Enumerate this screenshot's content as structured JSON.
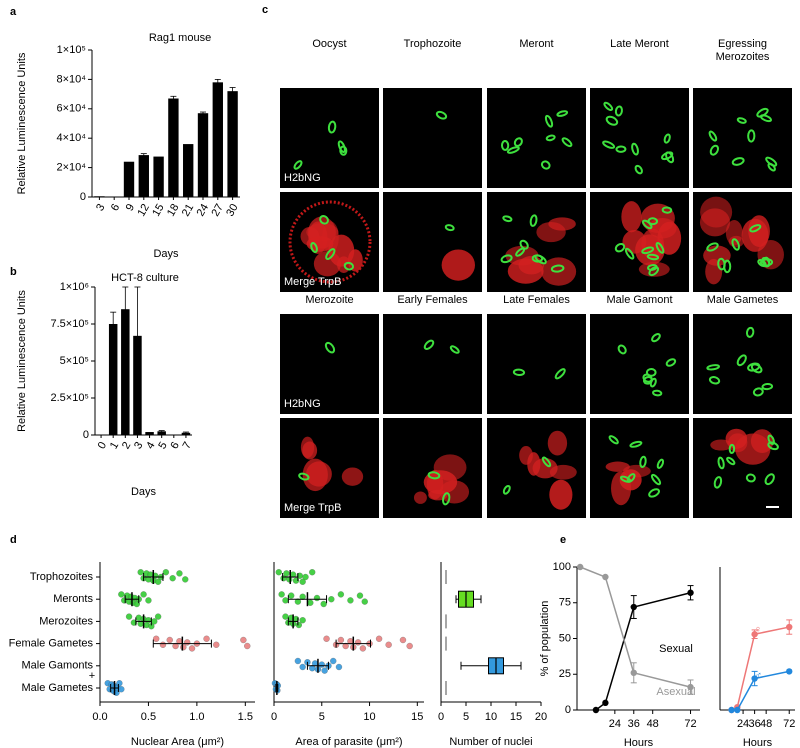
{
  "panel_labels": [
    "a",
    "b",
    "c",
    "d",
    "e"
  ],
  "annotation": "+",
  "microscopy": {
    "groups": [
      {
        "columns": [
          "Oocyst",
          "Trophozoite",
          "Meront",
          "Late Meront",
          "Egressing Merozoites"
        ],
        "rows": [
          "H2bNG",
          "Merge TrpB"
        ]
      },
      {
        "columns": [
          "Merozoite",
          "Early Females",
          "Late Females",
          "Male Gamont",
          "Male Gametes"
        ],
        "rows": [
          "H2bNG",
          "Merge TrpB"
        ]
      }
    ]
  },
  "chart_data": [
    {
      "type": "bar",
      "title": "Rag1 mouse",
      "y_label": "Relative Luminescence Units",
      "x_label": "Days",
      "categories": [
        "3",
        "6",
        "9",
        "12",
        "15",
        "18",
        "21",
        "24",
        "27",
        "30"
      ],
      "values": [
        500,
        200,
        24000,
        28500,
        27500,
        67000,
        36000,
        57000,
        78000,
        72000
      ],
      "errors": [
        null,
        null,
        null,
        1000,
        null,
        1500,
        null,
        800,
        2000,
        2500
      ],
      "color": "#000000",
      "ylim": [
        0,
        100000
      ],
      "yticks": [
        0,
        {
          "value": 20000,
          "label": "2×10⁴"
        },
        {
          "value": 40000,
          "label": "4×10⁴"
        },
        {
          "value": 60000,
          "label": "6×10⁴"
        },
        {
          "value": 80000,
          "label": "8×10⁴"
        },
        {
          "value": 100000,
          "label": "1×10⁵"
        }
      ]
    },
    {
      "type": "bar",
      "title": "HCT-8 culture",
      "y_label": "Relative Luminescence Units",
      "x_label": "Days",
      "categories": [
        "0",
        "1",
        "2",
        "3",
        "4",
        "5",
        "6",
        "7"
      ],
      "values": [
        0,
        750000,
        850000,
        670000,
        20000,
        25000,
        0,
        15000
      ],
      "errors": [
        null,
        80000,
        150000,
        330000,
        null,
        5000,
        null,
        5000
      ],
      "color": "#000000",
      "ylim": [
        0,
        1000000
      ],
      "yticks": [
        0,
        {
          "value": 250000,
          "label": "2.5×10⁵"
        },
        {
          "value": 500000,
          "label": "5×10⁵"
        },
        {
          "value": 750000,
          "label": "7.5×10⁵"
        },
        {
          "value": 1000000,
          "label": "1×10⁶"
        }
      ]
    },
    {
      "type": "strip",
      "x_label": "Nuclear Area (μm²)",
      "categories": [
        "Trophozoites",
        "Meronts",
        "Merozoites",
        "Female Gametes",
        "Male Gamonts",
        "Male Gametes"
      ],
      "colors": [
        "#33cc33",
        "#33cc33",
        "#33cc33",
        "#e88080",
        "#3399dd",
        "#3399dd"
      ],
      "points": [
        [
          0.42,
          0.45,
          0.48,
          0.5,
          0.52,
          0.55,
          0.57,
          0.6,
          0.63,
          0.68,
          0.75,
          0.82,
          0.88
        ],
        [
          0.22,
          0.25,
          0.28,
          0.3,
          0.32,
          0.34,
          0.36,
          0.38,
          0.4,
          0.45,
          0.5
        ],
        [
          0.3,
          0.35,
          0.4,
          0.42,
          0.45,
          0.48,
          0.5,
          0.53,
          0.56,
          0.6
        ],
        [
          0.58,
          0.65,
          0.72,
          0.78,
          0.82,
          0.86,
          0.9,
          0.95,
          1.0,
          1.1,
          1.2,
          1.48,
          1.52
        ],
        [],
        [
          0.08,
          0.1,
          0.12,
          0.13,
          0.14,
          0.15,
          0.16,
          0.17,
          0.18,
          0.2,
          0.22
        ]
      ],
      "means": [
        0.55,
        0.33,
        0.45,
        0.85,
        null,
        0.15
      ],
      "sds": [
        0.1,
        0.07,
        0.08,
        0.3,
        null,
        0.04
      ],
      "xlim": [
        0,
        1.6
      ],
      "xticks": [
        {
          "value": 0,
          "label": "0.0"
        },
        0.5,
        {
          "value": 1,
          "label": "1.0"
        },
        1.5
      ]
    },
    {
      "type": "strip",
      "x_label": "Area of parasite (μm²)",
      "colors": [
        "#33cc33",
        "#33cc33",
        "#33cc33",
        "#e88080",
        "#3399dd",
        "#3399dd"
      ],
      "points": [
        [
          0.5,
          1,
          1.3,
          1.6,
          2,
          2.3,
          2.7,
          3,
          3.3,
          4
        ],
        [
          0.8,
          1.2,
          1.8,
          2.5,
          3,
          3.8,
          4.5,
          5.2,
          6,
          7,
          8,
          9,
          9.5
        ],
        [
          1.2,
          1.5,
          1.8,
          2,
          2.3,
          2.6,
          3
        ],
        [
          5.5,
          6.5,
          7,
          7.5,
          8,
          8.3,
          8.8,
          9.3,
          10,
          11,
          12,
          13.5,
          14.2
        ],
        [
          2.5,
          3,
          3.5,
          4,
          4.3,
          4.6,
          5,
          5.3,
          5.7,
          6.2,
          6.8
        ],
        [
          0.1,
          0.2,
          0.3,
          0.35,
          0.4
        ]
      ],
      "means": [
        1.7,
        3.5,
        2,
        8.3,
        4.6,
        0.3
      ],
      "sds": [
        0.8,
        2,
        0.5,
        1.8,
        1.1,
        0.1
      ],
      "xlim": [
        0,
        15.7
      ],
      "xticks": [
        0,
        5,
        10,
        15
      ]
    },
    {
      "type": "box",
      "x_label": "Number of nuclei",
      "colors": [
        "#888888",
        "#66dd22",
        "#888888",
        "#888888",
        "#3399dd",
        "#888888"
      ],
      "boxes": [
        {
          "min": 1,
          "q1": 1,
          "median": 1,
          "q3": 1,
          "max": 1
        },
        {
          "min": 3,
          "q1": 3.5,
          "median": 5,
          "q3": 6.5,
          "max": 8
        },
        {
          "min": 1,
          "q1": 1,
          "median": 1,
          "q3": 1,
          "max": 1
        },
        {
          "min": 1,
          "q1": 1,
          "median": 1,
          "q3": 1,
          "max": 1
        },
        {
          "min": 4,
          "q1": 9.5,
          "median": 11,
          "q3": 12.5,
          "max": 16
        },
        {
          "min": 1,
          "q1": 1,
          "median": 1,
          "q3": 1,
          "max": 1
        }
      ],
      "xlim": [
        0,
        20
      ],
      "xticks": [
        0,
        5,
        10,
        15,
        20
      ]
    },
    {
      "type": "line",
      "y_label": "% of population",
      "x_label": "Hours",
      "xlim": [
        0,
        78
      ],
      "xticks": [
        24,
        36,
        48,
        72
      ],
      "ylim": [
        0,
        100
      ],
      "yticks": [
        0,
        25,
        50,
        75,
        100
      ],
      "series": [
        {
          "name": "Sexual",
          "color": "#000000",
          "x": [
            12,
            18,
            36,
            72
          ],
          "values": [
            0,
            5,
            72,
            82
          ],
          "errors": [
            null,
            null,
            8,
            5
          ]
        },
        {
          "name": "Asexual",
          "color": "#999999",
          "x": [
            2,
            18,
            36,
            72
          ],
          "values": [
            100,
            93,
            26,
            16
          ],
          "errors": [
            null,
            null,
            7,
            5
          ]
        }
      ]
    },
    {
      "type": "line",
      "x_label": "Hours",
      "xlim": [
        0,
        78
      ],
      "xticks": [
        24,
        36,
        48,
        72
      ],
      "ylim": [
        0,
        100
      ],
      "series": [
        {
          "name": "♀",
          "color": "#ee7777",
          "x": [
            12,
            18,
            36,
            72
          ],
          "values": [
            0,
            2,
            53,
            58
          ],
          "errors": [
            null,
            null,
            3,
            5
          ]
        },
        {
          "name": "♂",
          "color": "#2288dd",
          "x": [
            12,
            18,
            36,
            72
          ],
          "values": [
            0,
            0,
            22,
            27
          ],
          "errors": [
            null,
            null,
            5,
            null
          ]
        }
      ]
    }
  ]
}
